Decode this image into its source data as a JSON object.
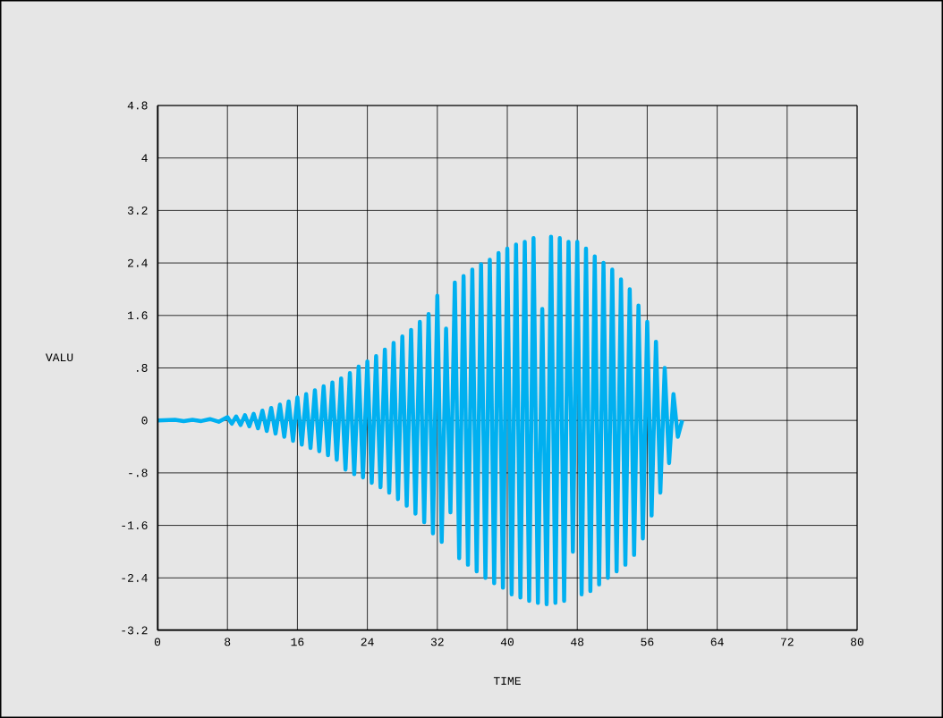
{
  "chart_data": {
    "type": "line",
    "xlabel": "TIME",
    "ylabel": "VALU",
    "x": [
      0,
      2,
      3,
      4,
      5,
      6,
      7,
      8,
      8.5,
      9,
      9.5,
      10,
      10.5,
      11,
      11.5,
      12,
      12.5,
      13,
      13.5,
      14,
      14.5,
      15,
      15.5,
      16,
      16.5,
      17,
      17.5,
      18,
      18.5,
      19,
      19.5,
      20,
      20.5,
      21,
      21.5,
      22,
      22.5,
      23,
      23.5,
      24,
      24.5,
      25,
      25.5,
      26,
      26.5,
      27,
      27.5,
      28,
      28.5,
      29,
      29.5,
      30,
      30.5,
      31,
      31.5,
      32,
      32.5,
      33,
      33.5,
      34,
      34.5,
      35,
      35.5,
      36,
      36.5,
      37,
      37.5,
      38,
      38.5,
      39,
      39.5,
      40,
      40.5,
      41,
      41.5,
      42,
      42.5,
      43,
      43.5,
      44,
      44.5,
      45,
      45.5,
      46,
      46.5,
      47,
      47.5,
      48,
      48.5,
      49,
      49.5,
      50,
      50.5,
      51,
      51.5,
      52,
      52.5,
      53,
      53.5,
      54,
      54.5,
      55,
      55.5,
      56,
      56.5,
      57,
      57.5,
      58,
      58.5,
      59,
      59.5,
      60
    ],
    "series": [
      {
        "color": "#00b0f0",
        "values": [
          0,
          0.01,
          -0.01,
          0.01,
          -0.01,
          0.02,
          -0.02,
          0.05,
          -0.05,
          0.06,
          -0.07,
          0.08,
          -0.09,
          0.1,
          -0.12,
          0.15,
          -0.16,
          0.19,
          -0.2,
          0.24,
          -0.25,
          0.29,
          -0.31,
          0.35,
          -0.37,
          0.4,
          -0.42,
          0.46,
          -0.47,
          0.52,
          -0.53,
          0.58,
          -0.6,
          0.64,
          -0.75,
          0.72,
          -0.82,
          0.82,
          -0.87,
          0.9,
          -0.95,
          0.98,
          -1.02,
          1.08,
          -1.1,
          1.18,
          -1.2,
          1.28,
          -1.3,
          1.38,
          -1.42,
          1.5,
          -1.55,
          1.62,
          -1.72,
          1.9,
          -1.85,
          1.4,
          -1.4,
          2.1,
          -2.1,
          2.2,
          -2.2,
          2.3,
          -2.3,
          2.38,
          -2.4,
          2.45,
          -2.48,
          2.55,
          -2.55,
          2.62,
          -2.65,
          2.68,
          -2.7,
          2.72,
          -2.75,
          2.78,
          -2.78,
          1.7,
          -2.8,
          2.8,
          -2.78,
          2.78,
          -2.75,
          2.72,
          -2.0,
          2.72,
          -2.65,
          2.62,
          -2.6,
          2.5,
          -2.5,
          2.4,
          -2.4,
          2.3,
          -2.3,
          2.15,
          -2.2,
          2.0,
          -2.05,
          1.75,
          -1.8,
          1.5,
          -1.45,
          1.2,
          -1.1,
          0.8,
          -0.65,
          0.4,
          -0.25,
          0
        ]
      }
    ],
    "xlim": [
      0,
      80
    ],
    "ylim": [
      -3.2,
      4.8
    ],
    "xticks": [
      0,
      8,
      16,
      24,
      32,
      40,
      48,
      56,
      64,
      72,
      80
    ],
    "yticks": [
      {
        "value": -3.2,
        "label": "-3.2"
      },
      {
        "value": -2.4,
        "label": "-2.4"
      },
      {
        "value": -1.6,
        "label": "-1.6"
      },
      {
        "value": -0.8,
        "label": "-.8"
      },
      0,
      {
        "value": 0.8,
        "label": ".8"
      },
      {
        "value": 1.6,
        "label": "1.6"
      },
      {
        "value": 2.4,
        "label": "2.4"
      },
      {
        "value": 3.2,
        "label": "3.2"
      },
      4,
      {
        "value": 4.8,
        "label": "4.8"
      }
    ],
    "grid": true,
    "marker": "none",
    "line_style": "solid"
  }
}
